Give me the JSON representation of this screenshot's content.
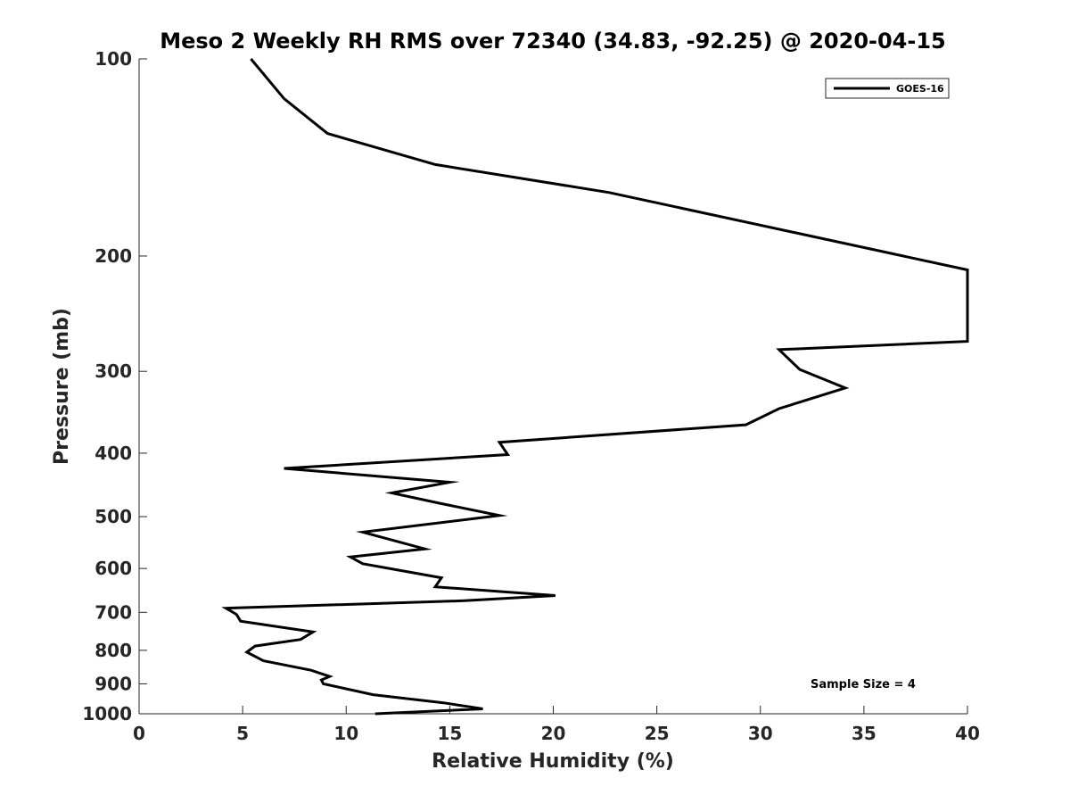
{
  "chart_data": {
    "type": "line",
    "title": "Meso 2 Weekly RH RMS over 72340 (34.83, -92.25) @ 2020-04-15",
    "xlabel": "Relative Humidity (%)",
    "ylabel": "Pressure (mb)",
    "xlim": [
      0,
      40
    ],
    "ylim": [
      1000,
      100
    ],
    "yscale": "log",
    "x_ticks": [
      0,
      5,
      10,
      15,
      20,
      25,
      30,
      35,
      40
    ],
    "y_ticks": [
      100,
      200,
      300,
      400,
      500,
      600,
      700,
      800,
      900,
      1000
    ],
    "grid": false,
    "legend": {
      "position": "top-right",
      "entries": [
        "GOES-16"
      ]
    },
    "annotation": "Sample Size = 4",
    "series": [
      {
        "name": "GOES-16",
        "color": "#000000",
        "points": [
          [
            5.4,
            100
          ],
          [
            7.0,
            115
          ],
          [
            9.1,
            130
          ],
          [
            14.3,
            145
          ],
          [
            22.7,
            160
          ],
          [
            40.0,
            210
          ],
          [
            40.0,
            270
          ],
          [
            30.9,
            278
          ],
          [
            31.9,
            298
          ],
          [
            34.1,
            318
          ],
          [
            30.9,
            342
          ],
          [
            29.3,
            362
          ],
          [
            17.4,
            385
          ],
          [
            17.8,
            402
          ],
          [
            7.0,
            422
          ],
          [
            15.0,
            443
          ],
          [
            12.2,
            460
          ],
          [
            14.5,
            477
          ],
          [
            17.4,
            498
          ],
          [
            10.8,
            528
          ],
          [
            13.8,
            560
          ],
          [
            10.2,
            576
          ],
          [
            10.8,
            590
          ],
          [
            14.6,
            620
          ],
          [
            14.3,
            640
          ],
          [
            20.1,
            660
          ],
          [
            15.7,
            672
          ],
          [
            4.2,
            690
          ],
          [
            4.7,
            705
          ],
          [
            4.9,
            722
          ],
          [
            8.4,
            750
          ],
          [
            7.8,
            770
          ],
          [
            5.6,
            788
          ],
          [
            5.2,
            805
          ],
          [
            6.0,
            830
          ],
          [
            8.3,
            858
          ],
          [
            9.2,
            877
          ],
          [
            8.8,
            888
          ],
          [
            8.9,
            900
          ],
          [
            11.3,
            935
          ],
          [
            14.7,
            962
          ],
          [
            16.6,
            983
          ],
          [
            11.4,
            1000
          ]
        ]
      }
    ]
  }
}
